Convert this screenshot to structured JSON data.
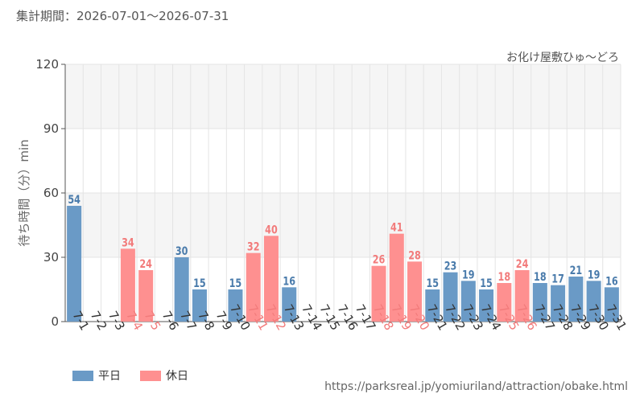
{
  "header": {
    "period": "集計期間：2026-07-01～2026-07-31"
  },
  "footer": {
    "source_url": "https://parksreal.jp/yomiuriland/attraction/obake.html"
  },
  "colors": {
    "weekday": "#6a9ac6",
    "holiday": "#fe9090",
    "weekday_label": "#4a7bab",
    "holiday_label": "#f27b7b",
    "band": "#f5f5f5",
    "grid": "#e4e4e4"
  },
  "chart_data": {
    "type": "bar",
    "title": "お化け屋敷ひゅ～どろ",
    "xlabel": "",
    "ylabel": "待ち時間（分）min",
    "ylim": [
      0,
      120
    ],
    "yticks": [
      0,
      30,
      60,
      90,
      120
    ],
    "grid": true,
    "legend_position": "bottom-left",
    "legend": [
      {
        "name": "平日",
        "color": "#6a9ac6"
      },
      {
        "name": "休日",
        "color": "#fe9090"
      }
    ],
    "categories": [
      "7-1",
      "7-2",
      "7-3",
      "7-4",
      "7-5",
      "7-6",
      "7-7",
      "7-8",
      "7-9",
      "7-10",
      "7-11",
      "7-12",
      "7-13",
      "7-14",
      "7-15",
      "7-16",
      "7-17",
      "7-18",
      "7-19",
      "7-20",
      "7-21",
      "7-22",
      "7-23",
      "7-24",
      "7-25",
      "7-26",
      "7-27",
      "7-28",
      "7-29",
      "7-30",
      "7-31"
    ],
    "values": [
      54,
      null,
      null,
      34,
      24,
      null,
      30,
      15,
      null,
      15,
      32,
      40,
      16,
      null,
      null,
      null,
      null,
      26,
      41,
      28,
      15,
      23,
      19,
      15,
      18,
      24,
      18,
      17,
      21,
      19,
      16
    ],
    "holiday": [
      false,
      false,
      false,
      true,
      true,
      false,
      false,
      false,
      false,
      false,
      true,
      true,
      false,
      false,
      false,
      false,
      false,
      true,
      true,
      true,
      false,
      false,
      false,
      false,
      true,
      true,
      false,
      false,
      false,
      false,
      false
    ]
  }
}
